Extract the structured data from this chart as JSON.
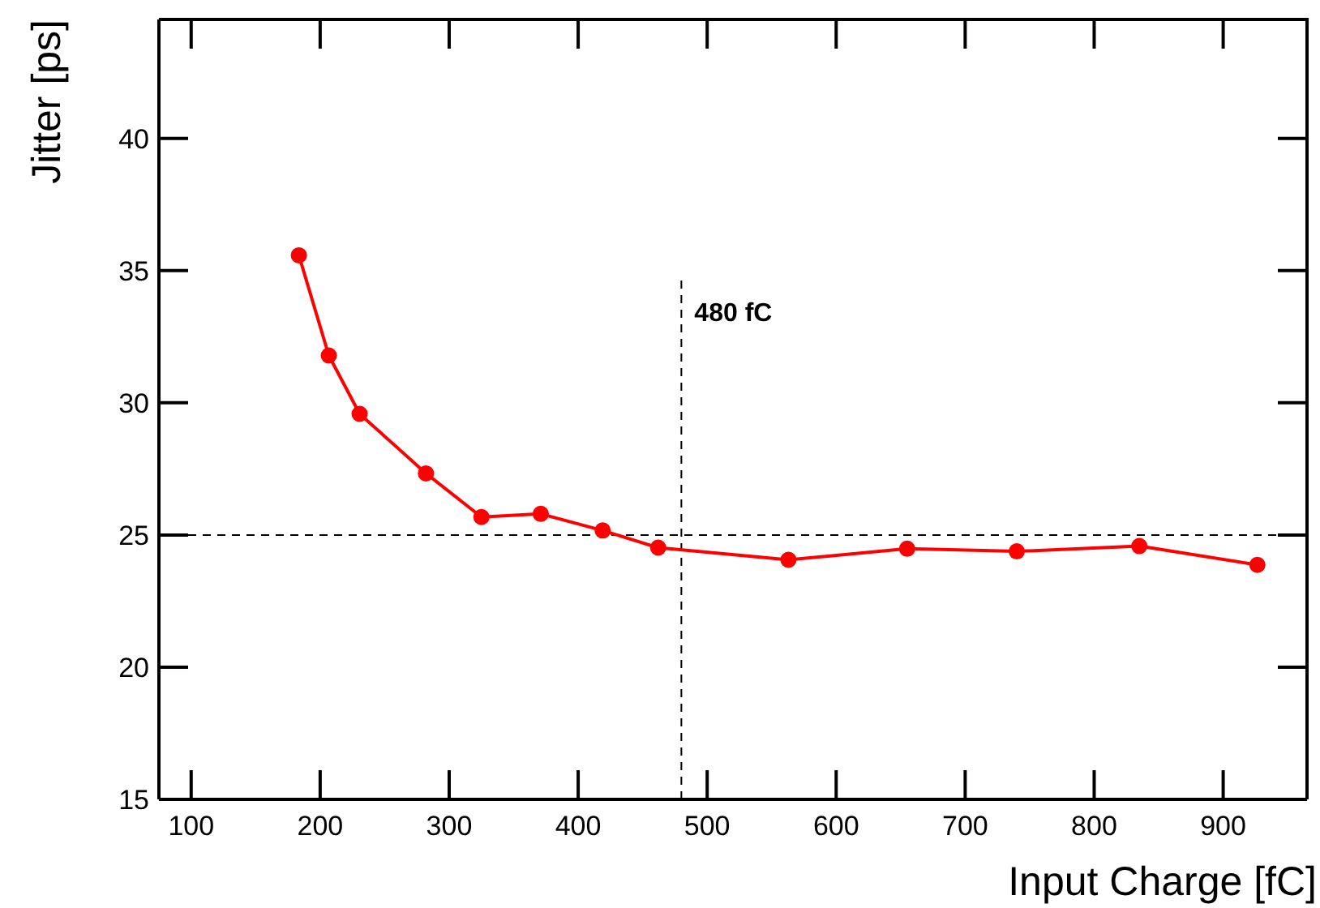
{
  "chart_data": {
    "type": "line",
    "xlabel": "Input Charge [fC]",
    "ylabel": "Jitter [ps]",
    "x": [
      183.5,
      206.7,
      230.6,
      282,
      325,
      371,
      419,
      462,
      563,
      655,
      740,
      835,
      926.5
    ],
    "series": [
      {
        "color": "#ff0000",
        "values": [
          35.58,
          31.79,
          29.58,
          27.33,
          25.68,
          25.8,
          25.17,
          24.52,
          24.06,
          24.48,
          24.38,
          24.58,
          23.87
        ]
      }
    ],
    "marker": "circle",
    "line_style": "solid",
    "grid": false,
    "xlim": [
      75,
      965
    ],
    "ylim": [
      15,
      44.5
    ],
    "xticks": [
      100,
      200,
      300,
      400,
      500,
      600,
      700,
      800,
      900
    ],
    "yticks": [
      15,
      20,
      25,
      30,
      35,
      40
    ],
    "ref_lines": [
      {
        "axis": "x",
        "value": 480,
        "label": "480 fC",
        "color": "#000000",
        "line_style": "dashed"
      },
      {
        "axis": "y",
        "value": 25,
        "color": "#000000",
        "line_style": "dashed"
      }
    ]
  }
}
